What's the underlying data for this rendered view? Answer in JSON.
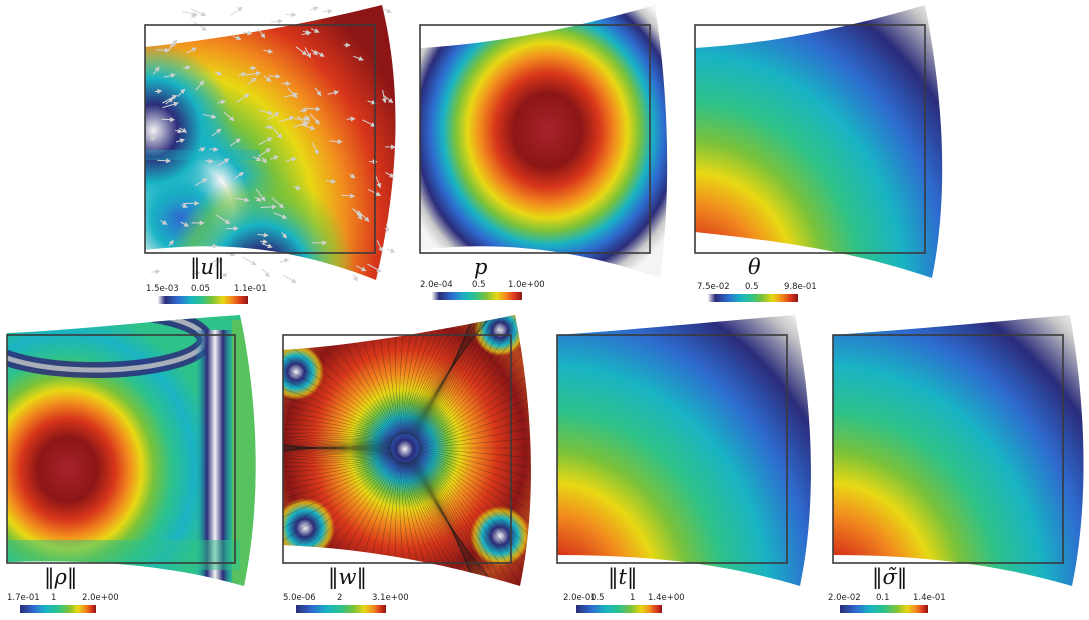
{
  "colormaps": {
    "rainbow": [
      "#2b2c7a",
      "#2e6bcf",
      "#19b3c4",
      "#2ec28a",
      "#7ac23a",
      "#e8d814",
      "#f28c1e",
      "#d8361a",
      "#8c1616"
    ],
    "rainbow_white": [
      "#f4f4f4",
      "#c9c9c9",
      "#2b2c7a",
      "#2e6bcf",
      "#19b3c4",
      "#2ec28a",
      "#7ac23a",
      "#e8d814",
      "#f28c1e",
      "#d8361a",
      "#8c1616"
    ]
  },
  "fields": [
    {
      "id": "velocity",
      "label": "‖u‖",
      "ticks": [
        "1.5e-03",
        "0.05",
        "1.1e-01"
      ],
      "colormap": "rainbow_white",
      "has_arrows": true
    },
    {
      "id": "pressure",
      "label": "p",
      "ticks": [
        "2.0e-04",
        "0.5",
        "1.0e+00"
      ],
      "colormap": "rainbow_white"
    },
    {
      "id": "temperature",
      "label": "θ",
      "ticks": [
        "7.5e-02",
        "0.5",
        "9.8e-01"
      ],
      "colormap": "rainbow_white"
    },
    {
      "id": "rho",
      "label": "‖ρ‖",
      "ticks": [
        "1.7e-01",
        "1",
        "2.0e+00"
      ],
      "colormap": "rainbow_white"
    },
    {
      "id": "w",
      "label": "‖w‖",
      "ticks": [
        "5.0e-06",
        "2",
        "3.1e+00"
      ],
      "colormap": "rainbow_white",
      "has_streamlines": true
    },
    {
      "id": "t",
      "label": "‖t‖",
      "ticks": [
        "2.0e-01",
        "0.5",
        "1",
        "1.4e+00"
      ],
      "colormap": "rainbow_white"
    },
    {
      "id": "sigma",
      "label": "‖σ̃‖",
      "ticks": [
        "2.0e-02",
        "0.1",
        "1.4e-01"
      ],
      "colormap": "rainbow_white"
    }
  ]
}
